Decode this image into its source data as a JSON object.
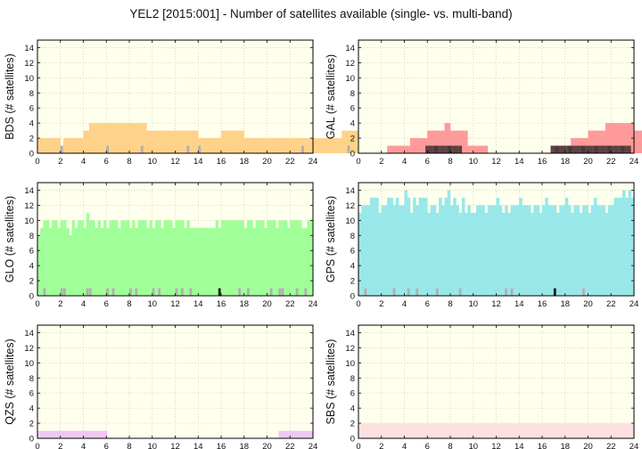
{
  "figure": {
    "title": "YEL2 [2015:001] - Number of satellites available (single- vs. multi-band)"
  },
  "colors": {
    "background": "#ffffee",
    "grid": "#c8c8a0",
    "single_band_gray": "#b0b0b0",
    "multi_band_dark": "#202020",
    "axes_frame": "#000000"
  },
  "chart_data": [
    {
      "type": "bar",
      "name": "BDS",
      "ylabel": "BDS (# satellites)",
      "xlim": [
        0,
        24
      ],
      "ylim": [
        0,
        15
      ],
      "xticks": [
        "0",
        "2",
        "4",
        "6",
        "8",
        "10",
        "12",
        "14",
        "16",
        "18",
        "20",
        "22",
        "24"
      ],
      "yticks": [
        "0",
        "2",
        "4",
        "6",
        "8",
        "10",
        "12",
        "14"
      ],
      "color": "#ffd28a",
      "grid": true,
      "bin_hours": 0.25,
      "values": [
        2,
        2,
        2,
        2,
        2,
        2,
        2,
        2,
        1,
        2,
        2,
        2,
        2,
        2,
        2,
        2,
        3,
        3,
        4,
        4,
        4,
        4,
        4,
        4,
        4,
        4,
        4,
        4,
        4,
        4,
        4,
        4,
        4,
        4,
        4,
        4,
        4,
        4,
        3,
        3,
        3,
        3,
        3,
        3,
        3,
        3,
        3,
        3,
        3,
        3,
        3,
        3,
        3,
        3,
        3,
        3,
        2,
        2,
        2,
        2,
        2,
        2,
        2,
        2,
        3,
        3,
        3,
        3,
        3,
        3,
        3,
        3,
        2,
        2,
        2,
        2,
        2,
        2,
        2,
        2,
        2,
        2,
        2,
        2,
        2,
        2,
        2,
        2,
        2,
        2,
        2,
        2,
        2,
        2,
        2,
        2,
        2,
        2,
        2,
        2,
        2,
        2,
        2,
        2,
        2,
        2,
        3,
        3,
        3,
        3,
        3,
        3,
        3,
        3,
        3,
        3,
        3,
        3,
        3,
        3,
        3,
        3,
        3,
        3,
        3,
        3,
        3,
        3,
        3,
        3,
        3,
        3,
        2,
        2,
        2,
        2
      ],
      "single_band_bins": [
        8,
        24,
        36,
        52,
        56,
        92,
        108,
        116,
        121,
        135
      ],
      "multi_band_bins": []
    },
    {
      "type": "bar",
      "name": "GAL",
      "ylabel": "GAL (# satellites)",
      "xlim": [
        0,
        24
      ],
      "ylim": [
        0,
        15
      ],
      "xticks": [
        "0",
        "2",
        "4",
        "6",
        "8",
        "10",
        "12",
        "14",
        "16",
        "18",
        "20",
        "22",
        "24"
      ],
      "yticks": [
        "0",
        "2",
        "4",
        "6",
        "8",
        "10",
        "12",
        "14"
      ],
      "color": "#ff9a9a",
      "grid": true,
      "bin_hours": 0.25,
      "values": [
        0,
        0,
        0,
        0,
        0,
        0,
        0,
        0,
        0,
        0,
        1,
        1,
        1,
        1,
        1,
        1,
        1,
        1,
        2,
        2,
        2,
        2,
        2,
        2,
        3,
        3,
        3,
        3,
        3,
        3,
        4,
        4,
        3,
        3,
        3,
        3,
        3,
        3,
        1,
        1,
        1,
        1,
        1,
        1,
        1,
        0,
        0,
        0,
        0,
        0,
        0,
        0,
        0,
        0,
        0,
        0,
        0,
        0,
        0,
        0,
        0,
        0,
        0,
        0,
        0,
        0,
        0,
        1,
        1,
        1,
        1,
        1,
        1,
        1,
        2,
        2,
        2,
        2,
        2,
        2,
        3,
        3,
        3,
        3,
        3,
        3,
        4,
        4,
        4,
        4,
        4,
        4,
        4,
        4,
        4,
        4,
        3,
        3,
        3,
        3
      ],
      "offset_bins": 0,
      "single_band_bins": [],
      "multi_band_ranges": [
        [
          5.85,
          9.0
        ],
        [
          16.75,
          23.7
        ]
      ],
      "multi_band_value": 1
    },
    {
      "type": "bar",
      "name": "GLO",
      "ylabel": "GLO (# satellites)",
      "xlim": [
        0,
        24
      ],
      "ylim": [
        0,
        15
      ],
      "xticks": [
        "0",
        "2",
        "4",
        "6",
        "8",
        "10",
        "12",
        "14",
        "16",
        "18",
        "20",
        "22",
        "24"
      ],
      "yticks": [
        "0",
        "2",
        "4",
        "6",
        "8",
        "10",
        "12",
        "14"
      ],
      "color": "#a0ff98",
      "grid": true,
      "bin_hours": 0.25,
      "values": [
        8,
        9,
        10,
        10,
        9,
        10,
        10,
        9,
        10,
        10,
        9,
        8,
        10,
        9,
        10,
        10,
        9,
        11,
        10,
        10,
        9,
        10,
        9,
        10,
        9,
        10,
        10,
        10,
        9,
        10,
        10,
        10,
        9,
        10,
        9,
        10,
        10,
        10,
        9,
        10,
        9,
        10,
        10,
        9,
        10,
        10,
        10,
        9,
        10,
        10,
        10,
        9,
        10,
        9,
        9,
        9,
        9,
        9,
        9,
        9,
        9,
        9,
        10,
        9,
        10,
        10,
        10,
        10,
        10,
        10,
        10,
        10,
        9,
        10,
        10,
        9,
        10,
        10,
        10,
        9,
        10,
        10,
        10,
        9,
        10,
        10,
        10,
        9,
        10,
        10,
        10,
        10,
        9,
        9,
        10,
        10
      ],
      "single_band_bins": [
        2,
        8,
        9,
        17,
        18,
        24,
        26,
        32,
        34,
        40,
        42,
        48,
        50,
        53,
        70,
        73,
        81,
        84,
        85,
        90,
        93
      ],
      "multi_band_bins": [
        63
      ]
    },
    {
      "type": "bar",
      "name": "GPS",
      "ylabel": "GPS (# satellites)",
      "xlim": [
        0,
        24
      ],
      "ylim": [
        0,
        15
      ],
      "xticks": [
        "0",
        "2",
        "4",
        "6",
        "8",
        "10",
        "12",
        "14",
        "16",
        "18",
        "20",
        "22",
        "24"
      ],
      "yticks": [
        "0",
        "2",
        "4",
        "6",
        "8",
        "10",
        "12",
        "14"
      ],
      "color": "#98e8ea",
      "grid": true,
      "bin_hours": 0.25,
      "values": [
        11,
        12,
        12,
        12,
        13,
        13,
        13,
        11,
        12,
        12,
        13,
        13,
        12,
        13,
        12,
        12,
        14,
        13,
        11,
        13,
        12,
        13,
        13,
        13,
        11,
        12,
        12,
        11,
        13,
        12,
        13,
        14,
        12,
        13,
        12,
        11,
        13,
        11,
        12,
        11,
        11,
        12,
        12,
        12,
        11,
        12,
        12,
        12,
        13,
        12,
        11,
        12,
        11,
        12,
        12,
        12,
        13,
        12,
        12,
        12,
        11,
        12,
        12,
        11,
        12,
        13,
        12,
        12,
        12,
        11,
        12,
        12,
        13,
        12,
        11,
        12,
        12,
        11,
        12,
        12,
        11,
        12,
        13,
        12,
        12,
        12,
        11,
        12,
        12,
        13,
        13,
        13,
        14,
        13,
        14,
        13
      ],
      "single_band_bins": [
        2,
        12,
        17,
        20,
        27,
        35,
        51,
        53,
        78
      ],
      "multi_band_bins": [
        68
      ]
    },
    {
      "type": "bar",
      "name": "QZS",
      "ylabel": "QZS (# satellites)",
      "xlim": [
        0,
        24
      ],
      "ylim": [
        0,
        15
      ],
      "xticks": [
        "0",
        "2",
        "4",
        "6",
        "8",
        "10",
        "12",
        "14",
        "16",
        "18",
        "20",
        "22",
        "24"
      ],
      "yticks": [
        "0",
        "2",
        "4",
        "6",
        "8",
        "10",
        "12",
        "14"
      ],
      "color": "#f0c8f4",
      "grid": true,
      "segments": [
        {
          "x0": 0,
          "x1": 6.1,
          "value": 1
        },
        {
          "x0": 21,
          "x1": 24,
          "value": 1
        }
      ],
      "single_band_bins": [],
      "multi_band_bins": []
    },
    {
      "type": "bar",
      "name": "SBS",
      "ylabel": "SBS (# satellites)",
      "xlim": [
        0,
        24
      ],
      "ylim": [
        0,
        15
      ],
      "xticks": [
        "0",
        "2",
        "4",
        "6",
        "8",
        "10",
        "12",
        "14",
        "16",
        "18",
        "20",
        "22",
        "24"
      ],
      "yticks": [
        "0",
        "2",
        "4",
        "6",
        "8",
        "10",
        "12",
        "14"
      ],
      "color": "#ffe0e0",
      "grid": true,
      "segments": [
        {
          "x0": 0,
          "x1": 24,
          "value": 2
        }
      ],
      "single_band_bins": [],
      "multi_band_bins": []
    }
  ]
}
